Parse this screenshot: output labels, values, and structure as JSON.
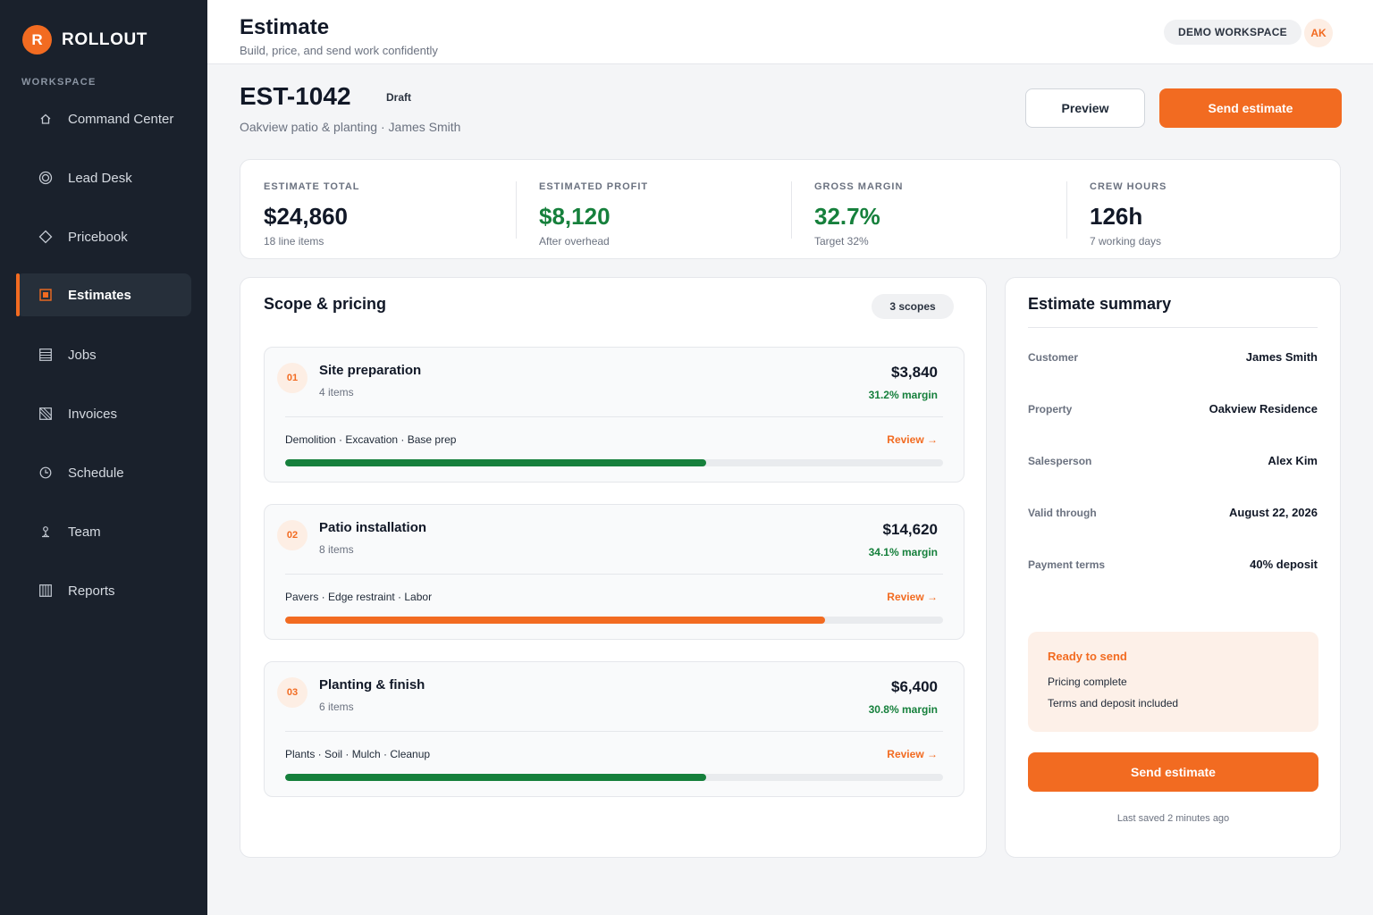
{
  "brand": {
    "logo_letter": "R",
    "name": "ROLLOUT"
  },
  "sidebar": {
    "section_label": "WORKSPACE",
    "items": [
      {
        "label": "Command Center",
        "icon": "home-icon"
      },
      {
        "label": "Lead Desk",
        "icon": "target-icon"
      },
      {
        "label": "Pricebook",
        "icon": "diamond-icon"
      },
      {
        "label": "Estimates",
        "icon": "document-icon",
        "active": true
      },
      {
        "label": "Jobs",
        "icon": "list-icon"
      },
      {
        "label": "Invoices",
        "icon": "invoice-icon"
      },
      {
        "label": "Schedule",
        "icon": "clock-icon"
      },
      {
        "label": "Team",
        "icon": "person-icon"
      },
      {
        "label": "Reports",
        "icon": "chart-icon"
      }
    ]
  },
  "header": {
    "title": "Estimate",
    "subtitle": "Build, price, and send work confidently",
    "workspace_pill": "DEMO WORKSPACE",
    "avatar_initials": "AK"
  },
  "estimate": {
    "id": "EST-1042",
    "status": "Draft",
    "subtitle": "Oakview patio & planting · James Smith",
    "preview_label": "Preview",
    "send_label": "Send estimate"
  },
  "stats": [
    {
      "label": "ESTIMATE TOTAL",
      "value": "$24,860",
      "note": "18 line items",
      "color": "#111827"
    },
    {
      "label": "ESTIMATED PROFIT",
      "value": "$8,120",
      "note": "After overhead",
      "color": "#16803c"
    },
    {
      "label": "GROSS MARGIN",
      "value": "32.7%",
      "note": "Target 32%",
      "color": "#16803c"
    },
    {
      "label": "CREW HOURS",
      "value": "126h",
      "note": "7 working days",
      "color": "#111827"
    }
  ],
  "scope": {
    "title": "Scope & pricing",
    "badge": "3 scopes",
    "items": [
      {
        "num": "01",
        "name": "Site preparation",
        "count": "4 items",
        "price": "$3,840",
        "margin": "31.2% margin",
        "tags": "Demolition · Excavation · Base prep",
        "review": "Review →",
        "progress": 0.64,
        "bar_color": "#16803c"
      },
      {
        "num": "02",
        "name": "Patio installation",
        "count": "8 items",
        "price": "$14,620",
        "margin": "34.1% margin",
        "tags": "Pavers · Edge restraint · Labor",
        "review": "Review →",
        "progress": 0.82,
        "bar_color": "#f26b21"
      },
      {
        "num": "03",
        "name": "Planting & finish",
        "count": "6 items",
        "price": "$6,400",
        "margin": "30.8% margin",
        "tags": "Plants · Soil · Mulch · Cleanup",
        "review": "Review →",
        "progress": 0.64,
        "bar_color": "#16803c"
      }
    ]
  },
  "summary": {
    "title": "Estimate summary",
    "rows": [
      {
        "key": "Customer",
        "value": "James Smith"
      },
      {
        "key": "Property",
        "value": "Oakview Residence"
      },
      {
        "key": "Salesperson",
        "value": "Alex Kim"
      },
      {
        "key": "Valid through",
        "value": "August 22, 2026"
      },
      {
        "key": "Payment terms",
        "value": "40% deposit"
      }
    ],
    "ready": {
      "title": "Ready to send",
      "lines": [
        "Pricing complete",
        "Terms and deposit included"
      ]
    },
    "send_label": "Send estimate",
    "last_saved": "Last saved 2 minutes ago"
  },
  "colors": {
    "accent": "#f26b21",
    "success": "#16803c",
    "sidebar_bg": "#1a212c"
  }
}
